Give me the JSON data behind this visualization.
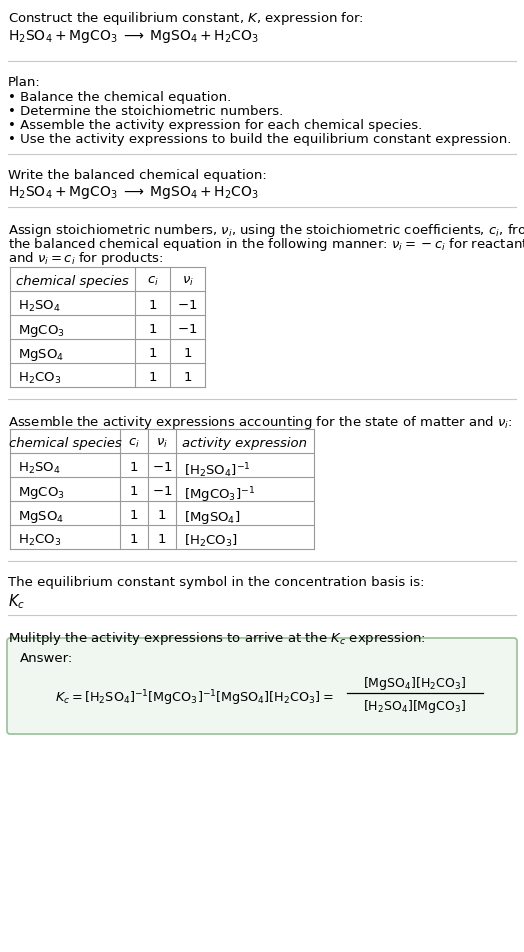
{
  "title_line1": "Construct the equilibrium constant, $K$, expression for:",
  "reaction": "$\\mathrm{H_2SO_4 + MgCO_3 \\;\\longrightarrow\\; MgSO_4 + H_2CO_3}$",
  "plan_header": "Plan:",
  "plan_items": [
    "• Balance the chemical equation.",
    "• Determine the stoichiometric numbers.",
    "• Assemble the activity expression for each chemical species.",
    "• Use the activity expressions to build the equilibrium constant expression."
  ],
  "balanced_header": "Write the balanced chemical equation:",
  "balanced_eq": "$\\mathrm{H_2SO_4 + MgCO_3 \\;\\longrightarrow\\; MgSO_4 + H_2CO_3}$",
  "stoich_intro": "Assign stoichiometric numbers, $\\nu_i$, using the stoichiometric coefficients, $c_i$, from the balanced chemical equation in the following manner: $\\nu_i = -c_i$ for reactants and $\\nu_i = c_i$ for products:",
  "table1_col1_header": "chemical species",
  "table1_col2_header": "$c_i$",
  "table1_col3_header": "$\\nu_i$",
  "table1_rows": [
    [
      "$\\mathrm{H_2SO_4}$",
      "1",
      "$-1$"
    ],
    [
      "$\\mathrm{MgCO_3}$",
      "1",
      "$-1$"
    ],
    [
      "$\\mathrm{MgSO_4}$",
      "1",
      "$1$"
    ],
    [
      "$\\mathrm{H_2CO_3}$",
      "1",
      "$1$"
    ]
  ],
  "activity_header": "Assemble the activity expressions accounting for the state of matter and $\\nu_i$:",
  "table2_col1_header": "chemical species",
  "table2_col2_header": "$c_i$",
  "table2_col3_header": "$\\nu_i$",
  "table2_col4_header": "activity expression",
  "table2_rows": [
    [
      "$\\mathrm{H_2SO_4}$",
      "1",
      "$-1$",
      "$[\\mathrm{H_2SO_4}]^{-1}$"
    ],
    [
      "$\\mathrm{MgCO_3}$",
      "1",
      "$-1$",
      "$[\\mathrm{MgCO_3}]^{-1}$"
    ],
    [
      "$\\mathrm{MgSO_4}$",
      "1",
      "$1$",
      "$[\\mathrm{MgSO_4}]$"
    ],
    [
      "$\\mathrm{H_2CO_3}$",
      "1",
      "$1$",
      "$[\\mathrm{H_2CO_3}]$"
    ]
  ],
  "kc_header": "The equilibrium constant symbol in the concentration basis is:",
  "kc_symbol": "$K_c$",
  "multiply_header": "Mulitply the activity expressions to arrive at the $K_c$ expression:",
  "answer_label": "Answer:",
  "bg_color": "#ffffff",
  "text_color": "#000000",
  "sep_color": "#c8c8c8",
  "table_line_color": "#999999",
  "answer_box_edge": "#9abf9a",
  "answer_box_face": "#f0f7f0",
  "font_size": 9.5
}
